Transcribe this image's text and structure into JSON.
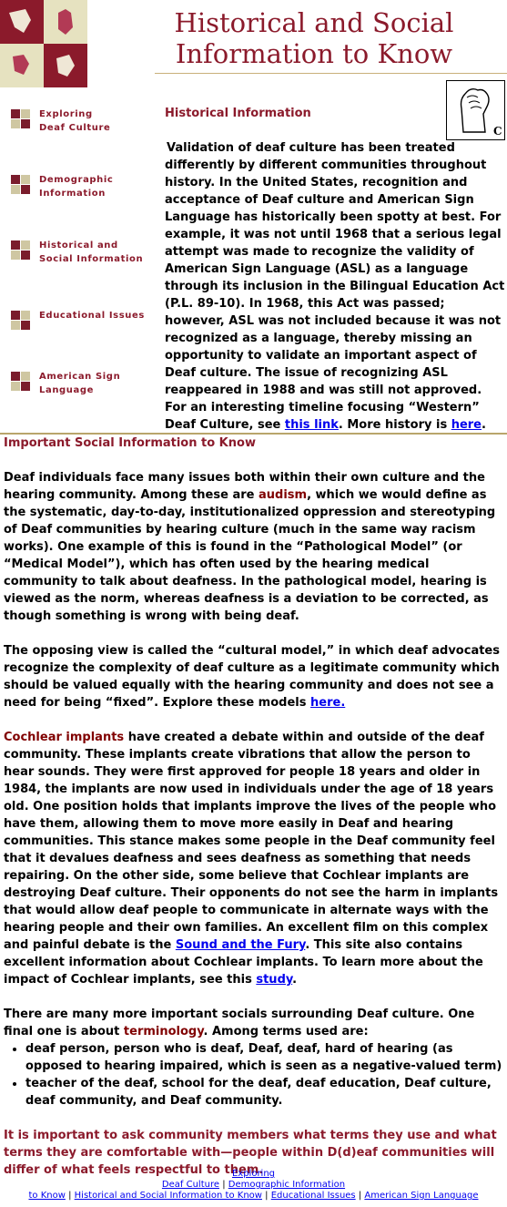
{
  "header": {
    "title_line1": "Historical and Social",
    "title_line2": "Information to Know"
  },
  "nav": {
    "items": [
      {
        "line1": "Exploring",
        "line2": "Deaf Culture"
      },
      {
        "line1": "Demographic",
        "line2": "Information"
      },
      {
        "line1": "Historical and",
        "line2": "Social Information"
      },
      {
        "line1": "Educational Issues",
        "line2": ""
      },
      {
        "line1": "American Sign",
        "line2": "Language"
      }
    ]
  },
  "historical": {
    "heading": "Historical Information",
    "body_1": "Validation of deaf culture has been treated differently by different communities throughout history.  In the United States, recognition and acceptance of Deaf culture and American Sign Language has historically been spotty at best.  For example, it was not until 1968 that a serious legal attempt was made to recognize the validity of American Sign Language (ASL) as a language through its inclusion in the Bilingual Education Act (P.L. 89-10).   In 1968, this Act was passed; however, ASL was not included because it was not recognized as a language, thereby missing an opportunity to validate an important aspect of Deaf culture.   The issue of recognizing ASL reappeared in 1988 and was still not approved. For an interesting timeline focusing “Western” Deaf Culture, see ",
    "link_1": "this link",
    "body_2": ".  More history is ",
    "link_2": "here",
    "body_3": "."
  },
  "social": {
    "heading": "Important Social Information to Know",
    "p1_a": "Deaf individuals face many issues both within their own culture and the hearing community.  Among these are ",
    "p1_term": "audism",
    "p1_b": ", which we would define as the systematic, day-to-day, institutionalized oppression and stereotyping of Deaf communities by hearing culture (much in the same way racism works).  One example of this is found in the “Pathological Model” (or “Medical Model”), which has often used by the hearing medical community to talk about deafness.  In the pathological model, hearing is viewed as the norm, whereas deafness is a deviation to be corrected, as though something is wrong with being deaf.",
    "p2_a": "The opposing view is called the “cultural model,” in which deaf advocates recognize the complexity of deaf culture as a legitimate community which should be valued equally with the hearing community and does not see a need for being “fixed”.   Explore these models ",
    "p2_link": "here.",
    "p3_term": "Cochlear implants",
    "p3_a": " have created a debate within and outside of the deaf community.  These implants create vibrations that allow the person to hear sounds.  They were first approved for people 18 years and older in 1984, the implants are now used in individuals under the age of 18 years old.  One position holds that implants improve the lives of the people who have them, allowing them to move more easily in Deaf and hearing communities.  This stance makes some people in the Deaf community feel that it devalues deafness and sees deafness as something that needs repairing.  On the other side, some believe that Cochlear implants are destroying Deaf culture.  Their opponents do not see the harm in implants that would allow deaf people to communicate in alternate ways with the hearing people and their own families.   An excellent film on this complex and painful debate is the ",
    "p3_link1": "Sound and the Fury",
    "p3_b": ".  This site also contains excellent information about Cochlear implants.    To learn more about the impact of Cochlear implants, see this ",
    "p3_link2": "study",
    "p3_c": ".",
    "p4_a": "There are many more important socials surrounding Deaf culture.  One final one is about ",
    "p4_term": "terminology",
    "p4_b": ".  Among terms used are:",
    "list": [
      "deaf person, person who is deaf, Deaf, deaf, hard of hearing (as opposed to hearing impaired, which is seen as a negative-valued term)",
      "teacher of the deaf, school for the deaf, deaf education, Deaf culture, deaf community, and Deaf community."
    ],
    "closing": "It is important to ask community members what terms they use and what terms they are comfortable with—people within D(d)eaf communities will differ of what feels respectful to them."
  },
  "footer": {
    "link_exploring_1": "Exploring",
    "link_exploring_2": "Deaf Culture",
    "sep": " | ",
    "link_demographic_1": "Demographic Information",
    "link_demographic_2": "to Know",
    "link_historical": "Historical and Social Information to Know",
    "link_educational": "Educational Issues",
    "link_asl": "American Sign Language"
  }
}
